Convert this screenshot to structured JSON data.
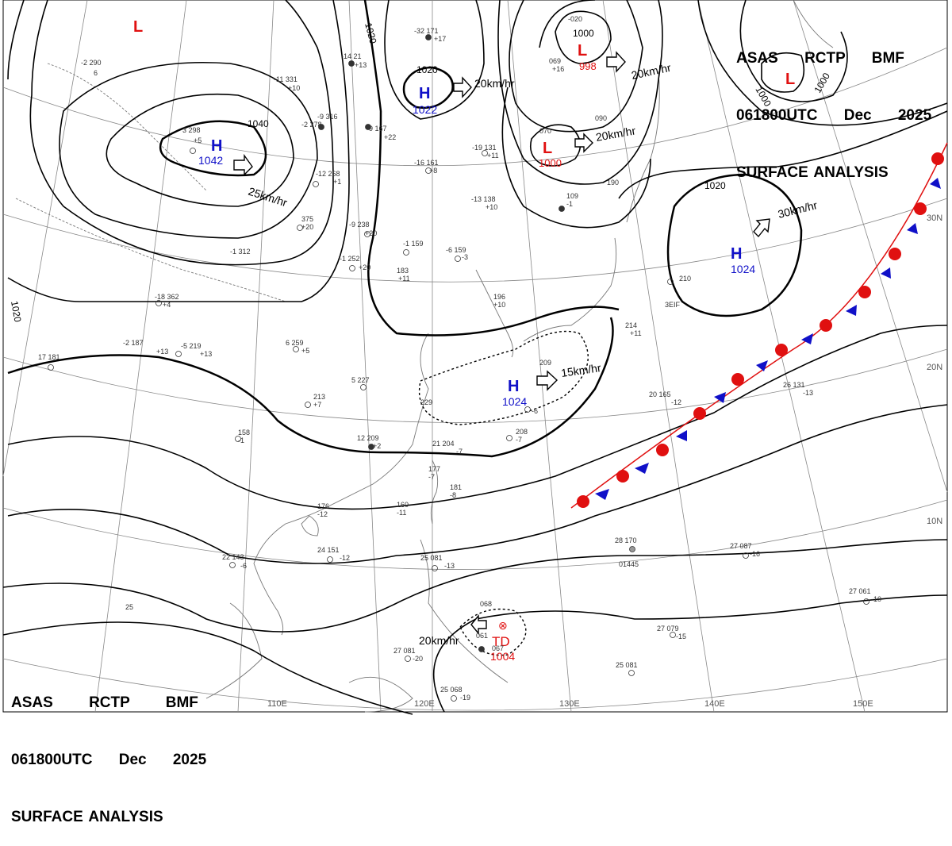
{
  "header": {
    "line1": "ASAS RCTP BMF",
    "line2": "061800UTC Dec 2025",
    "line3": "SURFACE ANALYSIS"
  },
  "colors": {
    "high": "#1010c8",
    "low": "#e01010",
    "warm_front": "#e01010",
    "cold_front": "#1010c8",
    "isobar": "#000000",
    "coast": "#777777",
    "grid": "#888888"
  },
  "lon_labels": [
    "110E",
    "120E",
    "130E",
    "140E",
    "150E"
  ],
  "lat_labels": [
    "30N",
    "20N",
    "10N"
  ],
  "isobar_labels": [
    "1040",
    "1020",
    "1020",
    "1020",
    "1000",
    "1000",
    "1000",
    "1020"
  ],
  "pressure_systems": [
    {
      "type": "H",
      "value": "1042",
      "motion": "25km/hr"
    },
    {
      "type": "H",
      "value": "1022",
      "motion": "20km/hr"
    },
    {
      "type": "H",
      "value": "1024",
      "motion": "30km/hr"
    },
    {
      "type": "H",
      "value": "1024",
      "motion": "15km/hr"
    },
    {
      "type": "L",
      "value": "998",
      "motion": "20km/hr"
    },
    {
      "type": "L",
      "value": "1000",
      "motion": "20km/hr"
    },
    {
      "type": "L",
      "value": "",
      "motion": ""
    },
    {
      "type": "L",
      "value": "",
      "motion": ""
    },
    {
      "type": "TD",
      "value": "1004",
      "motion": "20km/hr"
    }
  ],
  "stations": [
    "-2 290",
    "6",
    "-11 331",
    "+10",
    "-14 21",
    "+13",
    "-32 171",
    "+17",
    "-020",
    "069",
    "+16",
    "3 298",
    "+5",
    "-9 316",
    "-9 167",
    "+22",
    "-2 278",
    "-12 268",
    "+1",
    "-19 131",
    "+11",
    "-16 161",
    "+8",
    "070",
    "090",
    "375",
    "+20",
    "-9 238",
    "+20",
    "-13 138",
    "+10",
    "109",
    "-1",
    "190",
    "-18 362",
    "+4",
    "-1 312",
    "-1 252",
    "+20",
    "-1 159",
    "-6 159",
    "-3",
    "183",
    "+11",
    "196",
    "+10",
    "210",
    "-2 187",
    "+13",
    "-5 219",
    "+13",
    "6 259",
    "+5",
    "214",
    "+11",
    "17 181",
    "5 227",
    "229",
    "209",
    "213",
    "+7",
    "12 209",
    "+2",
    "-6",
    "208",
    "-7",
    "20 165",
    "-12",
    "26 131",
    "-13",
    "158",
    "-1",
    "21 204",
    "-7",
    "177",
    "-7",
    "181",
    "-8",
    "160",
    "-11",
    "176",
    "-12",
    "22 143",
    "-6",
    "24 151",
    "-12",
    "25 081",
    "-13",
    "28 170",
    "01445",
    "27 087",
    "-16",
    "27 061",
    "-10",
    "27 079",
    "-15",
    "25 081",
    "068",
    "061",
    "067",
    "25 068",
    "-19",
    "27 081",
    "-20",
    "25",
    "3EIF"
  ],
  "misc": {
    "km": "km/hr"
  }
}
